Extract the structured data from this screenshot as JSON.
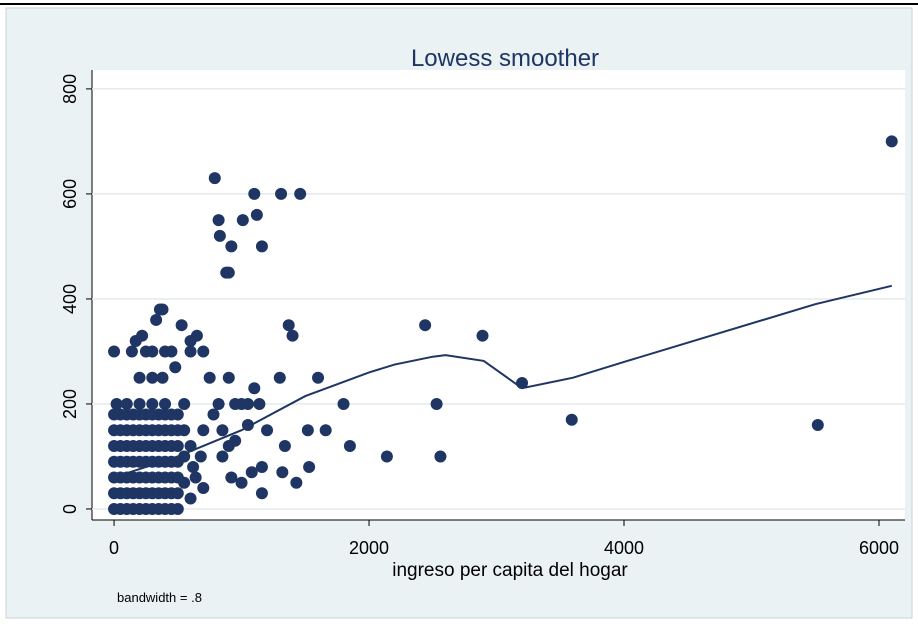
{
  "chart_data": {
    "type": "scatter",
    "title": "Lowess smoother",
    "x_label": "ingreso per capita del hogar",
    "note": "bandwidth = .8",
    "color": "#1f3563",
    "xlim": [
      -173,
      6204
    ],
    "ylim": [
      -21,
      836
    ],
    "xticks": [
      0,
      2000,
      4000,
      6000
    ],
    "yticks": [
      0,
      200,
      400,
      600,
      800
    ],
    "grid": true,
    "x": [
      6100,
      5520,
      3590,
      3200,
      2890,
      2440,
      2530,
      2560,
      2140,
      1850,
      1800,
      1600,
      1530,
      1520,
      1660,
      1430,
      1400,
      1370,
      1300,
      1340,
      1320,
      1460,
      1310,
      1100,
      1120,
      1010,
      820,
      830,
      920,
      1160,
      790,
      880,
      900,
      1100,
      1140,
      1200,
      1000,
      950,
      1050,
      1050,
      950,
      1160,
      1160,
      1080,
      1000,
      920,
      850,
      850,
      900,
      700,
      650,
      600,
      530,
      600,
      750,
      900,
      820,
      780,
      700,
      680,
      640,
      700,
      600,
      360,
      380,
      330,
      170,
      220,
      140,
      0,
      250,
      300,
      400,
      450,
      480,
      380,
      300,
      200,
      20,
      100,
      200,
      300,
      400,
      550,
      550,
      550,
      550,
      600,
      620,
      0,
      50,
      100,
      150,
      200,
      250,
      300,
      350,
      400,
      450,
      500,
      0,
      50,
      100,
      150,
      200,
      250,
      300,
      350,
      400,
      450,
      500,
      0,
      50,
      100,
      150,
      200,
      250,
      300,
      350,
      400,
      450,
      500,
      0,
      50,
      100,
      150,
      200,
      250,
      300,
      350,
      400,
      450,
      500,
      0,
      50,
      100,
      150,
      200,
      250,
      300,
      350,
      400,
      450,
      500,
      0,
      50,
      100,
      150,
      200,
      250,
      300,
      350,
      400,
      450,
      500,
      0,
      50,
      100,
      150,
      200,
      250,
      300,
      350,
      400,
      450,
      500
    ],
    "values": [
      700,
      160,
      170,
      240,
      330,
      350,
      200,
      100,
      100,
      120,
      200,
      250,
      80,
      150,
      150,
      50,
      330,
      350,
      250,
      120,
      70,
      600,
      600,
      600,
      560,
      550,
      550,
      520,
      500,
      500,
      630,
      450,
      450,
      230,
      200,
      150,
      200,
      200,
      200,
      160,
      130,
      80,
      30,
      70,
      50,
      60,
      100,
      150,
      120,
      300,
      330,
      300,
      350,
      320,
      250,
      250,
      200,
      180,
      150,
      100,
      60,
      40,
      20,
      380,
      380,
      360,
      320,
      330,
      300,
      300,
      300,
      300,
      300,
      300,
      270,
      250,
      250,
      250,
      200,
      200,
      200,
      200,
      200,
      200,
      150,
      100,
      50,
      120,
      80,
      0,
      0,
      0,
      0,
      0,
      0,
      0,
      0,
      0,
      0,
      0,
      30,
      30,
      30,
      30,
      30,
      30,
      30,
      30,
      30,
      30,
      30,
      60,
      60,
      60,
      60,
      60,
      60,
      60,
      60,
      60,
      60,
      60,
      90,
      90,
      90,
      90,
      90,
      90,
      90,
      90,
      90,
      90,
      90,
      120,
      120,
      120,
      120,
      120,
      120,
      120,
      120,
      120,
      120,
      120,
      150,
      150,
      150,
      150,
      150,
      150,
      150,
      150,
      150,
      150,
      150,
      180,
      180,
      180,
      180,
      180,
      180,
      180,
      180,
      180,
      180,
      180
    ],
    "lowess": {
      "x": [
        0,
        500,
        1000,
        1500,
        2000,
        2200,
        2500,
        2600,
        2900,
        3200,
        3600,
        4000,
        5500,
        6100
      ],
      "values": [
        60,
        100,
        150,
        215,
        260,
        275,
        290,
        293,
        282,
        230,
        250,
        280,
        390,
        425
      ]
    }
  }
}
